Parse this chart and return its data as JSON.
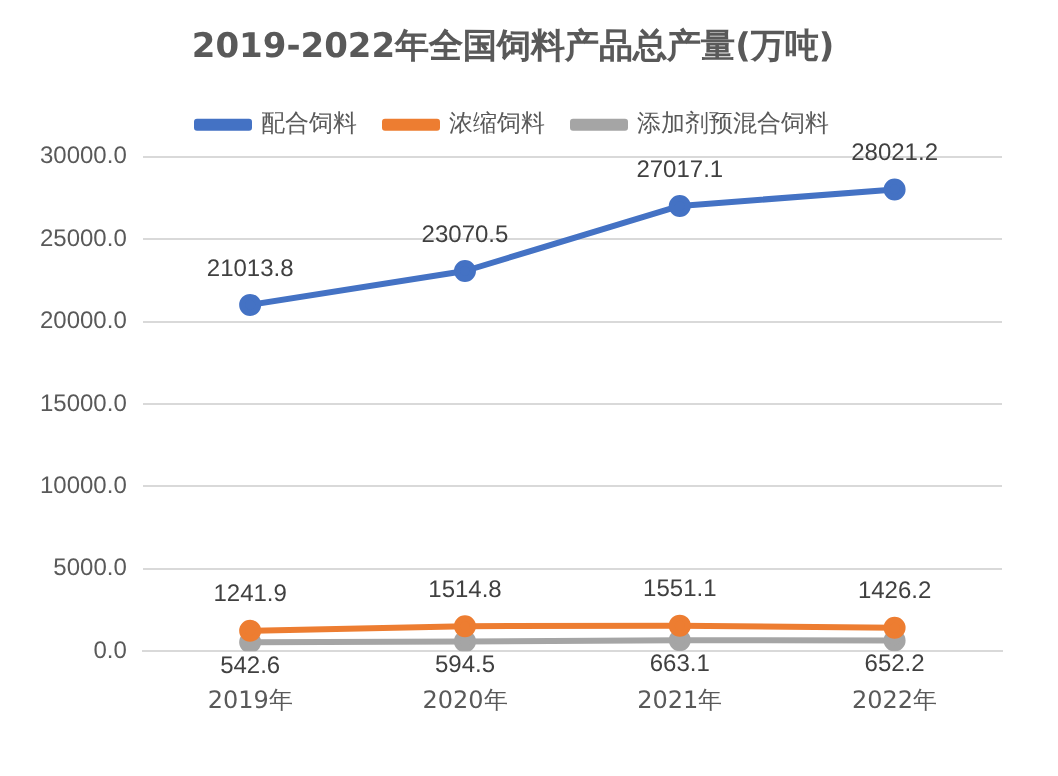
{
  "chart_data": {
    "type": "line",
    "title": "2019-2022年全国饲料产品总产量(万吨)",
    "categories": [
      "2019年",
      "2020年",
      "2021年",
      "2022年"
    ],
    "series": [
      {
        "name": "配合饲料",
        "color": "#4472c4",
        "values": [
          21013.8,
          23070.5,
          27017.1,
          28021.2
        ]
      },
      {
        "name": "浓缩饲料",
        "color": "#ed7d31",
        "values": [
          1241.9,
          1514.8,
          1551.1,
          1426.2
        ]
      },
      {
        "name": "添加剂预混合饲料",
        "color": "#a5a5a5",
        "values": [
          542.6,
          594.5,
          663.1,
          652.2
        ]
      }
    ],
    "ylim": [
      0,
      30000
    ],
    "yticks": [
      {
        "value": 0,
        "label": "0.0"
      },
      {
        "value": 5000,
        "label": "5000.0"
      },
      {
        "value": 10000,
        "label": "10000.0"
      },
      {
        "value": 15000,
        "label": "15000.0"
      },
      {
        "value": 20000,
        "label": "20000.0"
      },
      {
        "value": 25000,
        "label": "25000.0"
      },
      {
        "value": 30000,
        "label": "30000.0"
      }
    ],
    "grid": "y",
    "legend": "top",
    "marker": "circle",
    "line_style": "solid",
    "data_labels": true
  }
}
